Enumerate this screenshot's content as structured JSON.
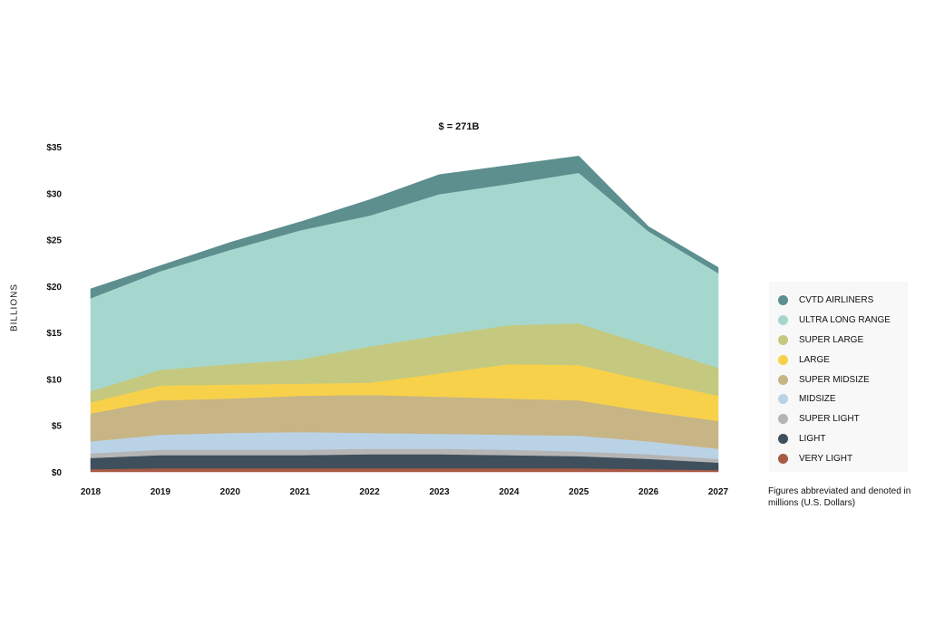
{
  "chart_data": {
    "type": "area",
    "stacked": true,
    "title": "$ = 271B",
    "ylabel": "BILLIONS",
    "xlabel": "",
    "x": [
      "2018",
      "2019",
      "2020",
      "2021",
      "2022",
      "2023",
      "2024",
      "2025",
      "2026",
      "2027"
    ],
    "y_ticks": [
      "$0",
      "$5",
      "$10",
      "$15",
      "$20",
      "$25",
      "$30",
      "$35"
    ],
    "ylim": [
      0,
      35
    ],
    "grid": false,
    "legend_position": "right",
    "series": [
      {
        "name": "VERY LIGHT",
        "color": "#a85a45",
        "values": [
          0.3,
          0.4,
          0.4,
          0.4,
          0.4,
          0.4,
          0.4,
          0.4,
          0.3,
          0.2
        ]
      },
      {
        "name": "LIGHT",
        "color": "#3f4f5c",
        "values": [
          1.2,
          1.4,
          1.4,
          1.4,
          1.5,
          1.5,
          1.4,
          1.3,
          1.1,
          0.8
        ]
      },
      {
        "name": "SUPER LIGHT",
        "color": "#b5b5b5",
        "values": [
          0.5,
          0.6,
          0.6,
          0.6,
          0.6,
          0.6,
          0.6,
          0.5,
          0.5,
          0.4
        ]
      },
      {
        "name": "MIDSIZE",
        "color": "#bad2e6",
        "values": [
          1.3,
          1.6,
          1.8,
          1.9,
          1.7,
          1.6,
          1.6,
          1.7,
          1.4,
          1.1
        ]
      },
      {
        "name": "SUPER MIDSIZE",
        "color": "#c7b585",
        "values": [
          3.0,
          3.7,
          3.7,
          3.9,
          4.1,
          4.0,
          3.9,
          3.8,
          3.2,
          3.0
        ]
      },
      {
        "name": "LARGE",
        "color": "#f8d14a",
        "values": [
          1.2,
          1.6,
          1.5,
          1.3,
          1.3,
          2.5,
          3.7,
          3.8,
          3.3,
          2.7
        ]
      },
      {
        "name": "SUPER LARGE",
        "color": "#c4c97f",
        "values": [
          1.2,
          1.7,
          2.2,
          2.6,
          3.9,
          4.1,
          4.2,
          4.5,
          3.8,
          3.0
        ]
      },
      {
        "name": "ULTRA LONG RANGE",
        "color": "#a6d7cf",
        "values": [
          10.0,
          10.6,
          12.3,
          13.9,
          14.1,
          15.2,
          15.2,
          16.2,
          12.3,
          10.2
        ]
      },
      {
        "name": "CVTD AIRLINERS",
        "color": "#5c8f8e",
        "values": [
          1.0,
          0.6,
          0.8,
          0.9,
          1.7,
          2.1,
          2.0,
          1.8,
          0.5,
          0.6
        ]
      }
    ],
    "legend_order": [
      "CVTD AIRLINERS",
      "ULTRA LONG RANGE",
      "SUPER LARGE",
      "LARGE",
      "SUPER MIDSIZE",
      "MIDSIZE",
      "SUPER LIGHT",
      "LIGHT",
      "VERY LIGHT"
    ],
    "footnote": "Figures abbreviated and denoted in millions (U.S. Dollars)"
  }
}
